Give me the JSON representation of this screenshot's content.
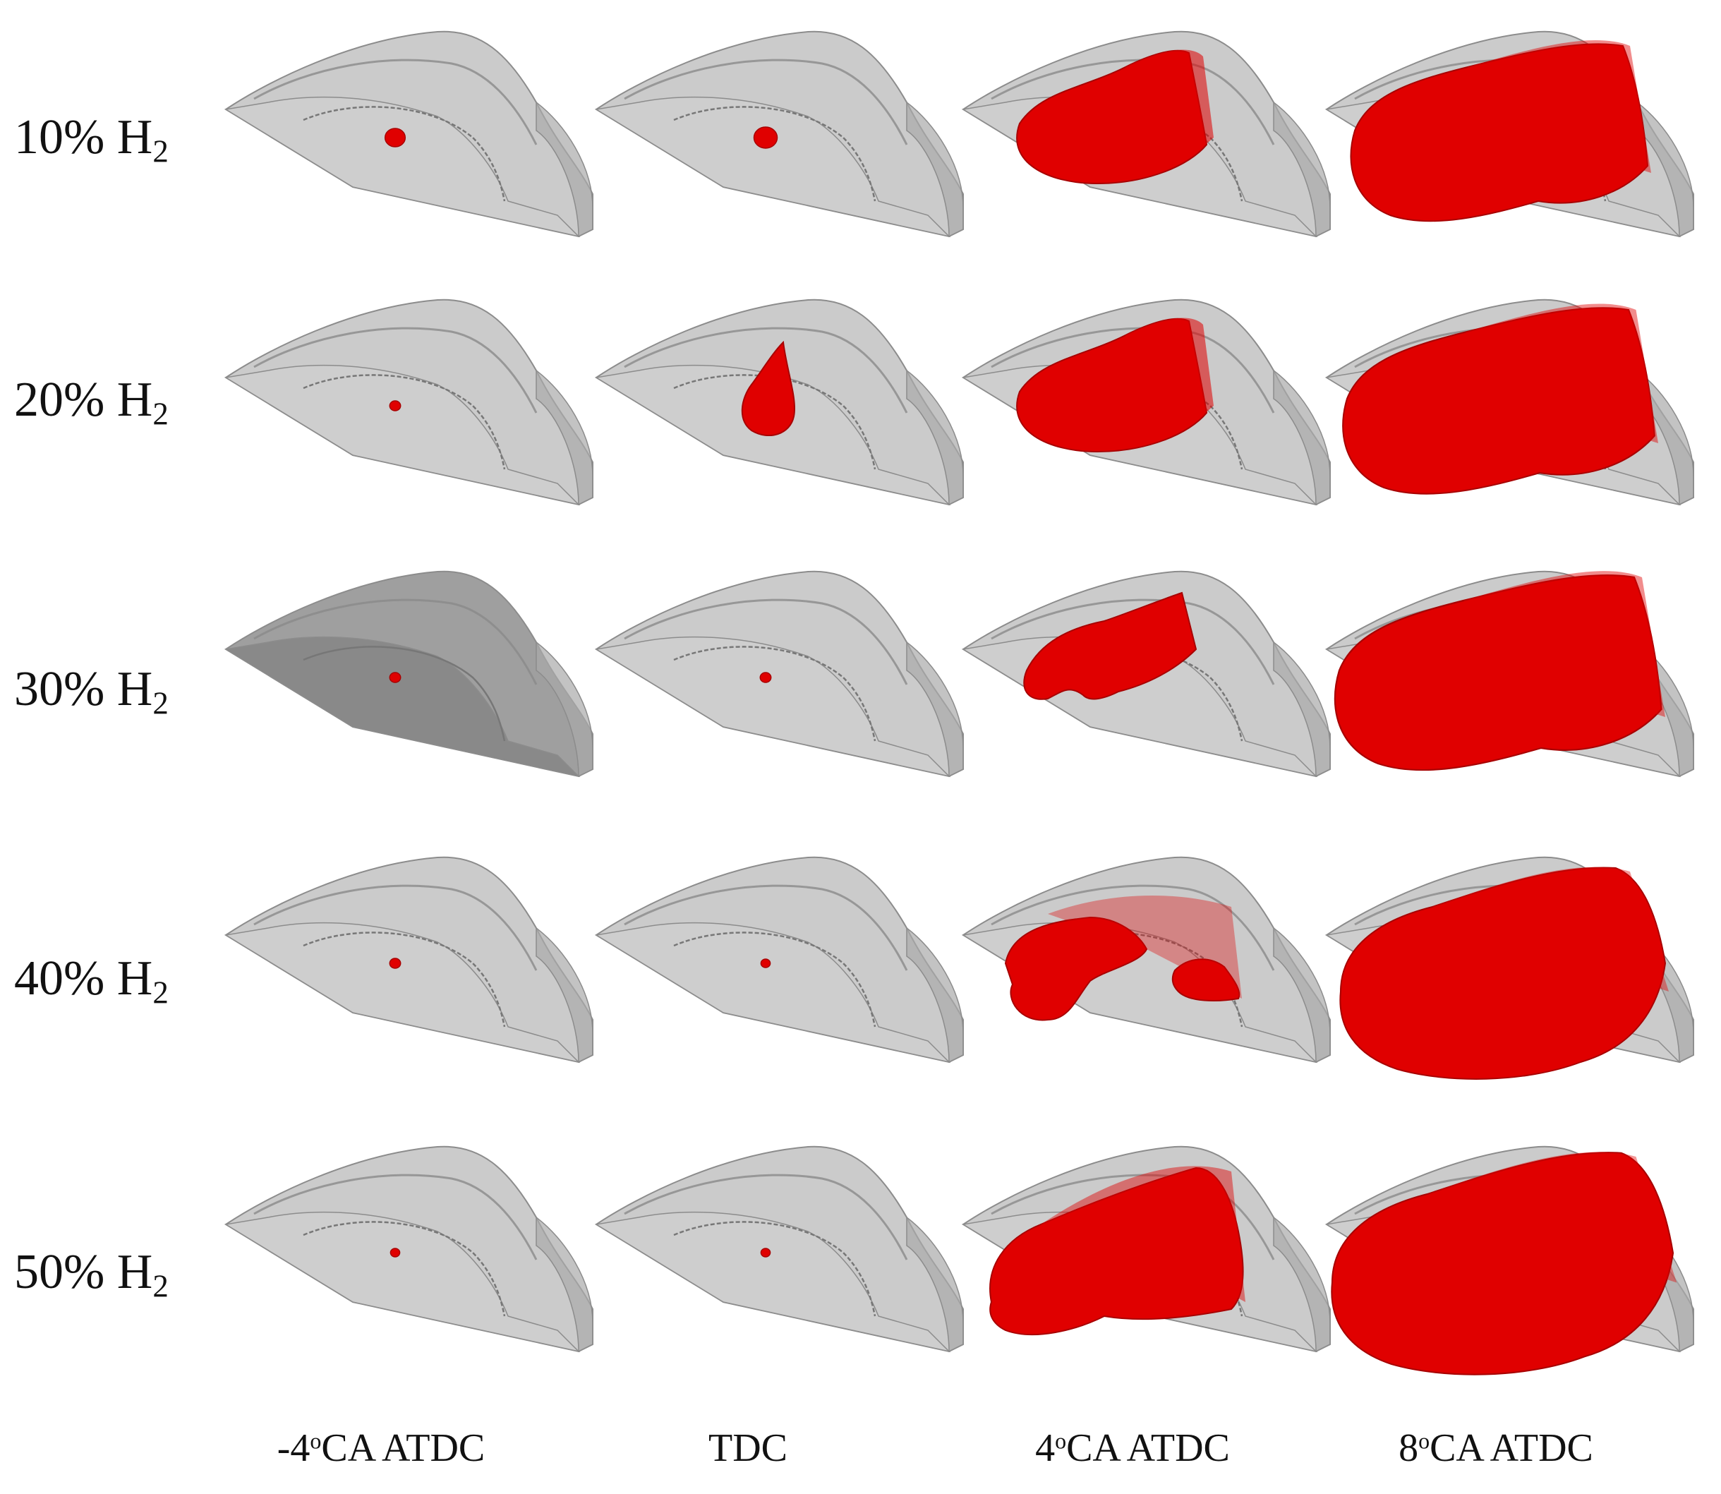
{
  "rows": [
    {
      "label_main": "10% H",
      "label_sub": "2"
    },
    {
      "label_main": "20% H",
      "label_sub": "2"
    },
    {
      "label_main": "30% H",
      "label_sub": "2"
    },
    {
      "label_main": "40% H",
      "label_sub": "2"
    },
    {
      "label_main": "50% H",
      "label_sub": "2"
    }
  ],
  "columns": [
    {
      "pre": "-4",
      "sup": "o",
      "post": "CA ATDC"
    },
    {
      "pre": "TDC",
      "sup": "",
      "post": ""
    },
    {
      "pre": "4",
      "sup": "o",
      "post": "CA ATDC"
    },
    {
      "pre": "8",
      "sup": "o",
      "post": "CA ATDC"
    }
  ],
  "colors": {
    "chamber_fill": "#b9b9b9",
    "chamber_edge": "#8c8c8c",
    "flame": "#e00000",
    "flame_dark": "#a80000"
  }
}
